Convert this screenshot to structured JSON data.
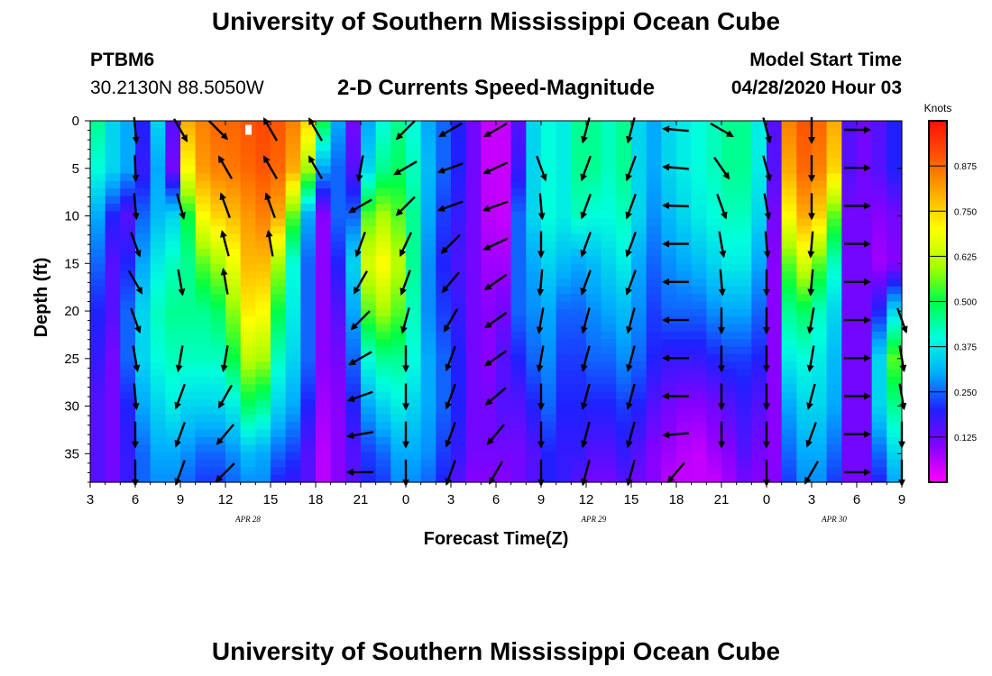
{
  "header": {
    "title": "University of Southern Mississippi Ocean Cube",
    "footer_title": "University of Southern Mississippi Ocean Cube",
    "station_id": "PTBM6",
    "station_coords": "30.2130N 88.5050W",
    "subtitle": "2-D Currents Speed-Magnitude",
    "model_start_label": "Model Start Time",
    "model_start_time": "04/28/2020 Hour 03"
  },
  "chart_data": {
    "type": "heatmap",
    "title": "2-D Currents Speed-Magnitude",
    "xlabel": "Forecast Time(Z)",
    "ylabel": "Depth (ft)",
    "x_tick_labels": [
      "3",
      "6",
      "9",
      "12",
      "15",
      "18",
      "21",
      "0",
      "3",
      "6",
      "9",
      "12",
      "15",
      "18",
      "21",
      "0",
      "3",
      "6",
      "9"
    ],
    "x_hours": [
      3,
      6,
      9,
      12,
      15,
      18,
      21,
      24,
      27,
      30,
      33,
      36,
      39,
      42,
      45,
      48,
      51,
      54,
      57
    ],
    "xlim_hours": [
      3,
      57
    ],
    "date_labels": [
      {
        "text": "APR  28",
        "hour": 13.5
      },
      {
        "text": "APR  29",
        "hour": 36.5
      },
      {
        "text": "APR  30",
        "hour": 52.5
      }
    ],
    "y_ticks": [
      0,
      5,
      10,
      15,
      20,
      25,
      30,
      35
    ],
    "ylim": [
      0,
      38
    ],
    "y_inverted": true,
    "colorbar": {
      "title": "Knots",
      "ticks": [
        "0.125",
        "0.250",
        "0.375",
        "0.500",
        "0.625",
        "0.750",
        "0.875"
      ],
      "tick_values": [
        0.125,
        0.25,
        0.375,
        0.5,
        0.625,
        0.75,
        0.875
      ],
      "range": [
        0,
        1.0
      ],
      "colors": [
        "#ff00ff",
        "#8800ff",
        "#2020ff",
        "#00aaff",
        "#00ffdd",
        "#00ff44",
        "#aaff00",
        "#ffff00",
        "#ffaa00",
        "#ff5500",
        "#ff1100"
      ]
    },
    "speed_columns": {
      "hours": [
        3.5,
        4.5,
        5.5,
        6.5,
        7.5,
        8.5,
        9.5,
        10.5,
        11.5,
        12.5,
        13.5,
        14.5,
        15.5,
        16.5,
        17.5,
        18.5,
        19.5,
        20.5,
        21.5,
        22.5,
        23.5,
        24.5,
        25.5,
        26.5,
        27.5,
        28.5,
        29.5,
        30.5,
        31.5,
        32.5,
        33.5,
        34.5,
        35.5,
        36.5,
        37.5,
        38.5,
        39.5,
        40.5,
        41.5,
        42.5,
        43.5,
        44.5,
        45.5,
        46.5,
        47.5,
        48.5,
        49.5,
        50.5,
        51.5,
        52.5,
        53.5,
        54.5,
        55.5,
        56.5
      ],
      "depths": [
        0,
        5,
        10,
        15,
        20,
        25,
        30,
        35,
        38
      ],
      "values": [
        [
          0.45,
          0.4,
          0.3,
          0.25,
          0.2,
          0.18,
          0.15,
          0.15,
          0.15
        ],
        [
          0.35,
          0.35,
          0.2,
          0.15,
          0.15,
          0.12,
          0.12,
          0.12,
          0.12
        ],
        [
          0.3,
          0.3,
          0.15,
          0.2,
          0.25,
          0.25,
          0.2,
          0.18,
          0.18
        ],
        [
          0.2,
          0.18,
          0.25,
          0.3,
          0.35,
          0.35,
          0.3,
          0.25,
          0.25
        ],
        [
          0.35,
          0.3,
          0.32,
          0.38,
          0.42,
          0.4,
          0.35,
          0.3,
          0.28
        ],
        [
          0.15,
          0.12,
          0.35,
          0.42,
          0.45,
          0.42,
          0.38,
          0.3,
          0.28
        ],
        [
          0.8,
          0.7,
          0.5,
          0.45,
          0.45,
          0.42,
          0.35,
          0.28,
          0.25
        ],
        [
          0.85,
          0.82,
          0.7,
          0.55,
          0.45,
          0.42,
          0.35,
          0.25,
          0.22
        ],
        [
          0.88,
          0.85,
          0.75,
          0.6,
          0.48,
          0.42,
          0.35,
          0.25,
          0.22
        ],
        [
          0.88,
          0.86,
          0.78,
          0.68,
          0.58,
          0.5,
          0.38,
          0.28,
          0.25
        ],
        [
          0.9,
          0.88,
          0.82,
          0.78,
          0.72,
          0.62,
          0.48,
          0.32,
          0.28
        ],
        [
          0.92,
          0.9,
          0.85,
          0.78,
          0.7,
          0.6,
          0.45,
          0.3,
          0.28
        ],
        [
          0.9,
          0.88,
          0.8,
          0.6,
          0.5,
          0.42,
          0.35,
          0.25,
          0.2
        ],
        [
          0.85,
          0.8,
          0.55,
          0.4,
          0.38,
          0.35,
          0.3,
          0.22,
          0.18
        ],
        [
          0.75,
          0.6,
          0.3,
          0.25,
          0.25,
          0.25,
          0.2,
          0.15,
          0.15
        ],
        [
          0.5,
          0.3,
          0.1,
          0.1,
          0.1,
          0.1,
          0.08,
          0.06,
          0.06
        ],
        [
          0.3,
          0.25,
          0.25,
          0.2,
          0.15,
          0.12,
          0.1,
          0.1,
          0.1
        ],
        [
          0.12,
          0.15,
          0.25,
          0.35,
          0.3,
          0.25,
          0.2,
          0.15,
          0.15
        ],
        [
          0.3,
          0.35,
          0.55,
          0.65,
          0.55,
          0.4,
          0.3,
          0.22,
          0.2
        ],
        [
          0.4,
          0.45,
          0.6,
          0.7,
          0.6,
          0.45,
          0.35,
          0.25,
          0.22
        ],
        [
          0.45,
          0.48,
          0.55,
          0.62,
          0.55,
          0.45,
          0.38,
          0.3,
          0.28
        ],
        [
          0.4,
          0.42,
          0.45,
          0.45,
          0.42,
          0.4,
          0.35,
          0.3,
          0.28
        ],
        [
          0.3,
          0.32,
          0.3,
          0.28,
          0.28,
          0.3,
          0.3,
          0.28,
          0.25
        ],
        [
          0.25,
          0.25,
          0.22,
          0.2,
          0.22,
          0.25,
          0.25,
          0.22,
          0.2
        ],
        [
          0.2,
          0.2,
          0.18,
          0.16,
          0.18,
          0.2,
          0.2,
          0.18,
          0.15
        ],
        [
          0.12,
          0.12,
          0.12,
          0.12,
          0.12,
          0.12,
          0.12,
          0.12,
          0.1
        ],
        [
          0.05,
          0.05,
          0.06,
          0.08,
          0.1,
          0.1,
          0.12,
          0.12,
          0.1
        ],
        [
          0.05,
          0.05,
          0.05,
          0.08,
          0.12,
          0.15,
          0.15,
          0.12,
          0.1
        ],
        [
          0.15,
          0.18,
          0.25,
          0.25,
          0.25,
          0.2,
          0.15,
          0.12,
          0.12
        ],
        [
          0.35,
          0.35,
          0.35,
          0.3,
          0.28,
          0.25,
          0.2,
          0.15,
          0.15
        ],
        [
          0.4,
          0.4,
          0.4,
          0.35,
          0.3,
          0.28,
          0.25,
          0.2,
          0.2
        ],
        [
          0.38,
          0.38,
          0.38,
          0.32,
          0.25,
          0.22,
          0.2,
          0.18,
          0.18
        ],
        [
          0.45,
          0.45,
          0.42,
          0.3,
          0.25,
          0.22,
          0.2,
          0.18,
          0.15
        ],
        [
          0.45,
          0.45,
          0.4,
          0.32,
          0.28,
          0.25,
          0.2,
          0.15,
          0.12
        ],
        [
          0.42,
          0.42,
          0.4,
          0.35,
          0.3,
          0.25,
          0.2,
          0.15,
          0.12
        ],
        [
          0.45,
          0.45,
          0.42,
          0.38,
          0.32,
          0.28,
          0.22,
          0.18,
          0.15
        ],
        [
          0.35,
          0.35,
          0.35,
          0.3,
          0.28,
          0.25,
          0.2,
          0.15,
          0.12
        ],
        [
          0.3,
          0.3,
          0.28,
          0.25,
          0.22,
          0.2,
          0.15,
          0.1,
          0.1
        ],
        [
          0.35,
          0.35,
          0.32,
          0.28,
          0.25,
          0.18,
          0.12,
          0.08,
          0.06
        ],
        [
          0.38,
          0.38,
          0.35,
          0.3,
          0.25,
          0.18,
          0.1,
          0.06,
          0.05
        ],
        [
          0.4,
          0.4,
          0.38,
          0.32,
          0.25,
          0.18,
          0.1,
          0.05,
          0.05
        ],
        [
          0.42,
          0.42,
          0.4,
          0.35,
          0.28,
          0.2,
          0.12,
          0.08,
          0.05
        ],
        [
          0.45,
          0.45,
          0.42,
          0.38,
          0.3,
          0.22,
          0.15,
          0.1,
          0.08
        ],
        [
          0.45,
          0.45,
          0.42,
          0.38,
          0.3,
          0.22,
          0.18,
          0.15,
          0.12
        ],
        [
          0.38,
          0.38,
          0.35,
          0.3,
          0.25,
          0.2,
          0.15,
          0.12,
          0.1
        ],
        [
          0.15,
          0.15,
          0.12,
          0.1,
          0.1,
          0.1,
          0.1,
          0.1,
          0.1
        ],
        [
          0.85,
          0.8,
          0.7,
          0.55,
          0.45,
          0.38,
          0.3,
          0.25,
          0.22
        ],
        [
          0.9,
          0.88,
          0.8,
          0.65,
          0.48,
          0.4,
          0.35,
          0.3,
          0.28
        ],
        [
          0.88,
          0.85,
          0.75,
          0.55,
          0.42,
          0.38,
          0.35,
          0.3,
          0.28
        ],
        [
          0.8,
          0.75,
          0.55,
          0.42,
          0.35,
          0.32,
          0.3,
          0.25,
          0.22
        ],
        [
          0.15,
          0.15,
          0.12,
          0.12,
          0.12,
          0.12,
          0.12,
          0.12,
          0.12
        ],
        [
          0.12,
          0.12,
          0.12,
          0.12,
          0.12,
          0.12,
          0.12,
          0.12,
          0.12
        ],
        [
          0.15,
          0.15,
          0.1,
          0.08,
          0.2,
          0.35,
          0.35,
          0.25,
          0.2
        ],
        [
          0.2,
          0.2,
          0.12,
          0.1,
          0.35,
          0.55,
          0.45,
          0.35,
          0.3
        ]
      ]
    },
    "vectors": {
      "depth_rows": [
        0,
        4,
        8,
        12,
        16,
        20,
        24,
        28,
        32,
        36
      ],
      "columns": [
        {
          "hour": 6,
          "directions_deg": [
            175,
            178,
            175,
            160,
            150,
            160,
            170,
            175,
            180,
            180
          ]
        },
        {
          "hour": 9,
          "directions_deg": [
            150,
            null,
            165,
            null,
            170,
            null,
            190,
            200,
            200,
            200
          ]
        },
        {
          "hour": 11.5,
          "directions_deg": [
            135,
            null,
            null,
            null,
            null,
            null,
            null,
            null,
            null,
            null
          ]
        },
        {
          "hour": 12,
          "directions_deg": [
            null,
            330,
            340,
            345,
            350,
            null,
            190,
            210,
            220,
            225
          ]
        },
        {
          "hour": 15,
          "directions_deg": [
            330,
            330,
            340,
            350,
            null,
            null,
            null,
            null,
            null,
            null
          ]
        },
        {
          "hour": 18,
          "directions_deg": [
            330,
            330,
            null,
            null,
            null,
            null,
            null,
            null,
            null,
            null
          ]
        },
        {
          "hour": 21,
          "directions_deg": [
            null,
            190,
            240,
            200,
            210,
            225,
            240,
            250,
            260,
            270
          ]
        },
        {
          "hour": 24,
          "directions_deg": [
            225,
            240,
            225,
            205,
            200,
            195,
            180,
            180,
            180,
            180
          ]
        },
        {
          "hour": 27,
          "directions_deg": [
            240,
            250,
            250,
            225,
            220,
            210,
            200,
            200,
            200,
            200
          ]
        },
        {
          "hour": 30,
          "directions_deg": [
            240,
            245,
            250,
            245,
            235,
            235,
            235,
            230,
            220,
            210
          ]
        },
        {
          "hour": 33,
          "directions_deg": [
            null,
            160,
            175,
            180,
            185,
            190,
            190,
            180,
            180,
            180
          ]
        },
        {
          "hour": 36,
          "directions_deg": [
            195,
            200,
            200,
            200,
            200,
            195,
            195,
            195,
            195,
            195
          ]
        },
        {
          "hour": 39,
          "directions_deg": [
            195,
            200,
            200,
            200,
            200,
            195,
            195,
            195,
            195,
            195
          ]
        },
        {
          "hour": 42,
          "directions_deg": [
            275,
            275,
            272,
            270,
            270,
            270,
            270,
            270,
            265,
            220
          ]
        },
        {
          "hour": 45,
          "directions_deg": [
            120,
            145,
            160,
            170,
            175,
            180,
            180,
            180,
            180,
            null
          ]
        },
        {
          "hour": 48,
          "directions_deg": [
            165,
            165,
            170,
            175,
            180,
            180,
            180,
            180,
            180,
            180
          ]
        },
        {
          "hour": 51,
          "directions_deg": [
            180,
            180,
            180,
            185,
            185,
            190,
            190,
            195,
            200,
            210
          ]
        },
        {
          "hour": 54,
          "directions_deg": [
            90,
            90,
            90,
            90,
            90,
            90,
            90,
            90,
            90,
            90
          ]
        },
        {
          "hour": 57,
          "directions_deg": [
            null,
            null,
            null,
            null,
            null,
            160,
            170,
            170,
            180,
            180
          ]
        }
      ]
    },
    "annotations": [
      {
        "text": "",
        "type": "white-marker",
        "hour": 13.5,
        "depth": 1
      }
    ]
  }
}
